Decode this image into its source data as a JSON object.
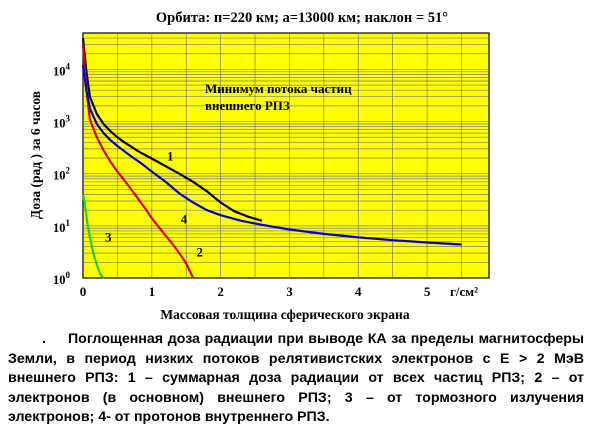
{
  "chart_data": {
    "type": "line",
    "title": "Орбита: п=220 км; а=13000 км; наклон = 51°",
    "xlabel": "Массовая толщина сферического экрана",
    "ylabel": "Доза (рад ) за 6 часов",
    "x_unit": "г/см²",
    "xlim": [
      0,
      5.9
    ],
    "ylim": [
      1,
      50000
    ],
    "y_scale": "log",
    "grid": true,
    "x_ticks": [
      "0",
      "1",
      "2",
      "3",
      "4",
      "5"
    ],
    "y_ticks": [
      {
        "value": 1,
        "base": "10",
        "exp": "0"
      },
      {
        "value": 10,
        "base": "10",
        "exp": "1"
      },
      {
        "value": 100,
        "base": "10",
        "exp": "2"
      },
      {
        "value": 1000,
        "base": "10",
        "exp": "3"
      },
      {
        "value": 10000,
        "base": "10",
        "exp": "4"
      }
    ],
    "annotation": [
      "Минимум потока частиц",
      "внешнего РПЗ"
    ],
    "series": [
      {
        "label": "1",
        "color": "#000000",
        "label_at": [
          1.22,
          180
        ],
        "points": [
          [
            0.0,
            40000
          ],
          [
            0.05,
            9000
          ],
          [
            0.1,
            3000
          ],
          [
            0.2,
            1400
          ],
          [
            0.3,
            900
          ],
          [
            0.4,
            650
          ],
          [
            0.5,
            500
          ],
          [
            0.6,
            400
          ],
          [
            0.7,
            330
          ],
          [
            0.8,
            270
          ],
          [
            0.9,
            230
          ],
          [
            1.0,
            195
          ],
          [
            1.2,
            140
          ],
          [
            1.4,
            100
          ],
          [
            1.6,
            70
          ],
          [
            1.8,
            46
          ],
          [
            2.0,
            28
          ],
          [
            2.2,
            19
          ],
          [
            2.4,
            15
          ],
          [
            2.6,
            12.5
          ]
        ]
      },
      {
        "label": "2",
        "color": "#dd0000",
        "label_at": [
          1.65,
          2.6
        ],
        "points": [
          [
            0.0,
            30000
          ],
          [
            0.05,
            4000
          ],
          [
            0.1,
            1100
          ],
          [
            0.2,
            500
          ],
          [
            0.3,
            280
          ],
          [
            0.4,
            170
          ],
          [
            0.5,
            110
          ],
          [
            0.6,
            75
          ],
          [
            0.7,
            50
          ],
          [
            0.8,
            33
          ],
          [
            0.9,
            22
          ],
          [
            1.0,
            14
          ],
          [
            1.1,
            9.5
          ],
          [
            1.2,
            6.5
          ],
          [
            1.3,
            4.5
          ],
          [
            1.4,
            3.0
          ],
          [
            1.5,
            1.9
          ],
          [
            1.6,
            1.0
          ]
        ]
      },
      {
        "label": "3",
        "color": "#22cc22",
        "label_at": [
          0.32,
          5
        ],
        "points": [
          [
            0.0,
            40
          ],
          [
            0.03,
            25
          ],
          [
            0.06,
            12
          ],
          [
            0.1,
            6
          ],
          [
            0.15,
            3
          ],
          [
            0.2,
            1.8
          ],
          [
            0.25,
            1.2
          ],
          [
            0.3,
            0.9
          ]
        ]
      },
      {
        "label": "4",
        "color": "#0000dd",
        "label_at": [
          1.42,
          11
        ],
        "points": [
          [
            0.0,
            12000
          ],
          [
            0.05,
            4000
          ],
          [
            0.1,
            1800
          ],
          [
            0.2,
            900
          ],
          [
            0.3,
            600
          ],
          [
            0.4,
            440
          ],
          [
            0.5,
            340
          ],
          [
            0.6,
            270
          ],
          [
            0.7,
            215
          ],
          [
            0.8,
            175
          ],
          [
            0.9,
            140
          ],
          [
            1.0,
            110
          ],
          [
            1.2,
            70
          ],
          [
            1.4,
            42
          ],
          [
            1.6,
            28
          ],
          [
            1.8,
            20
          ],
          [
            2.0,
            16
          ],
          [
            2.3,
            12.5
          ],
          [
            2.6,
            10.5
          ],
          [
            3.0,
            8.5
          ],
          [
            3.5,
            7.0
          ],
          [
            4.0,
            6.0
          ],
          [
            4.5,
            5.3
          ],
          [
            5.0,
            4.8
          ],
          [
            5.5,
            4.4
          ]
        ]
      }
    ]
  },
  "caption": {
    "marker": ".",
    "text": "Поглощенная доза радиации при выводе КА за пределы магнитосферы Земли, в период низких потоков релятивистских электронов с E > 2 МэВ внешнего РПЗ: 1 – суммарная доза радиации от всех частиц РПЗ; 2 – от электронов (в основном) внешнего РПЗ; 3 – от тормозного излучения электронов; 4- от протонов внутреннего РПЗ."
  }
}
